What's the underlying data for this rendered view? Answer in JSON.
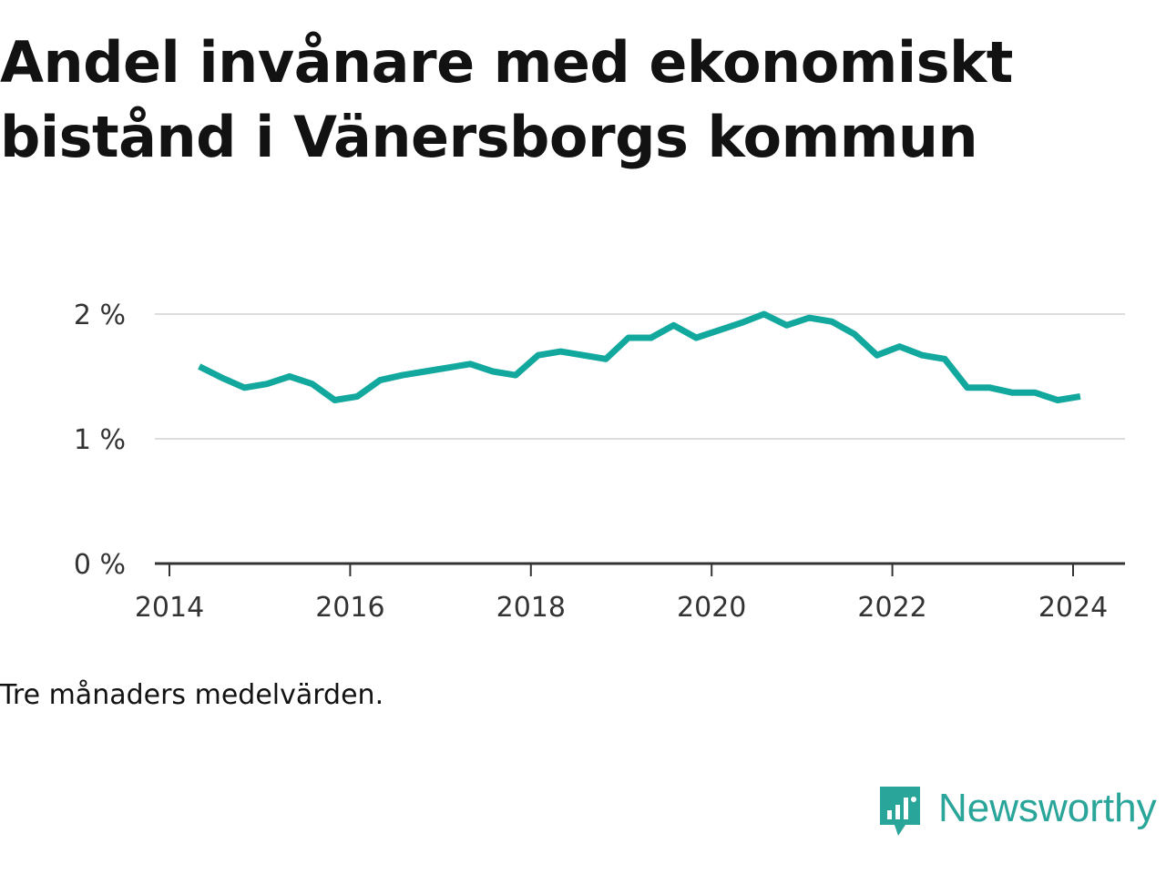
{
  "title": "Andel invånare med ekonomiskt bistånd i Vänersborgs kommun",
  "caption": "Tre månaders medelvärden.",
  "brand": "Newsworthy",
  "colors": {
    "line": "#13a89e",
    "grid": "#dddddd",
    "axis": "#333333",
    "brand": "#2aa59a"
  },
  "chart_data": {
    "type": "line",
    "title": "Andel invånare med ekonomiskt bistånd i Vänersborgs kommun",
    "xlabel": "",
    "ylabel": "",
    "xlim": [
      2014,
      2025.1
    ],
    "ylim": [
      0,
      2.2
    ],
    "xticks": [
      2014,
      2016,
      2018,
      2020,
      2022,
      2024
    ],
    "xtick_labels": [
      "2014",
      "2016",
      "2018",
      "2020",
      "2022",
      "2024"
    ],
    "yticks": [
      0,
      1,
      2
    ],
    "ytick_labels": [
      "0 %",
      "1 %",
      "2 %"
    ],
    "grid": "horizontal",
    "series": [
      {
        "x": [
          2014.33,
          2014.58,
          2014.83,
          2015.08,
          2015.33,
          2015.58,
          2015.83,
          2016.08,
          2016.33,
          2016.58,
          2016.83,
          2017.08,
          2017.33,
          2017.58,
          2017.83,
          2018.08,
          2018.33,
          2018.58,
          2018.83,
          2019.08,
          2019.33,
          2019.58,
          2019.83,
          2020.08,
          2020.33,
          2020.58,
          2020.83,
          2021.08,
          2021.33,
          2021.58,
          2021.83,
          2022.08,
          2022.33,
          2022.58,
          2022.83,
          2023.08,
          2023.33,
          2023.58,
          2023.83,
          2024.08
        ],
        "y": [
          1.58,
          1.49,
          1.41,
          1.44,
          1.5,
          1.44,
          1.31,
          1.34,
          1.47,
          1.51,
          1.54,
          1.57,
          1.6,
          1.54,
          1.51,
          1.67,
          1.7,
          1.67,
          1.64,
          1.81,
          1.81,
          1.91,
          1.81,
          1.87,
          1.93,
          2.0,
          1.91,
          1.97,
          1.94,
          1.84,
          1.67,
          1.74,
          1.67,
          1.64,
          1.41,
          1.41,
          1.37,
          1.37,
          1.31,
          1.34
        ]
      }
    ]
  }
}
